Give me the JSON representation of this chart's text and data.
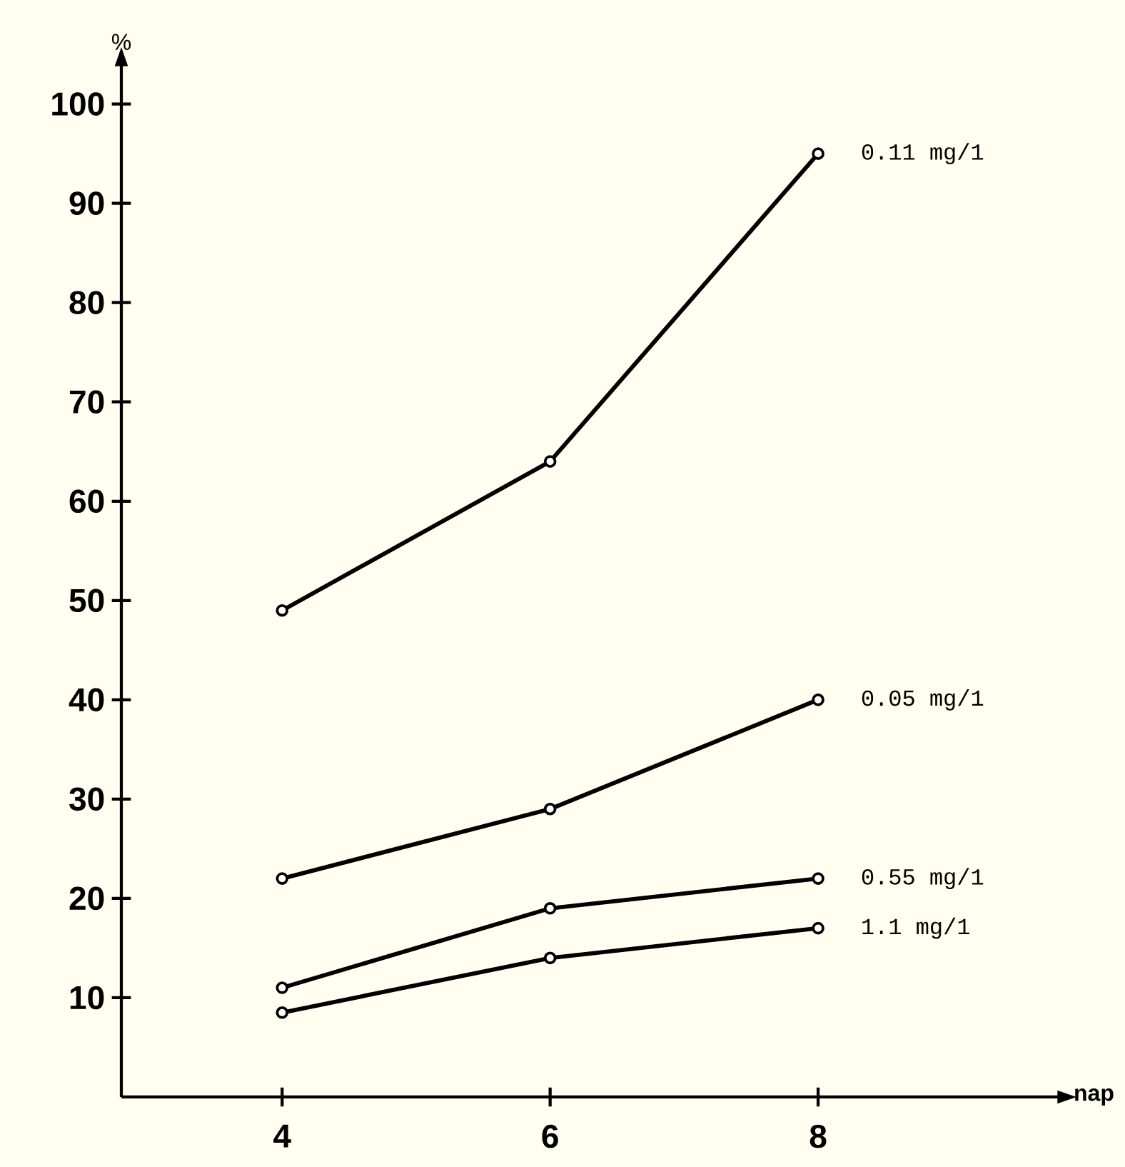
{
  "chart_data": {
    "type": "line",
    "xlabel": "nap",
    "ylabel": "%",
    "x": [
      4,
      6,
      8
    ],
    "xlim": [
      2.8,
      9.8
    ],
    "ylim": [
      0,
      104
    ],
    "xticks": [
      4,
      6,
      8
    ],
    "yticks": [
      10,
      20,
      30,
      40,
      50,
      60,
      70,
      80,
      90,
      100
    ],
    "marker": "circle",
    "line_style": "solid",
    "series": [
      {
        "name": "0.11 mg/1",
        "color": "#000000",
        "values": [
          49,
          64,
          95
        ]
      },
      {
        "name": "0.05 mg/1",
        "color": "#000000",
        "values": [
          22,
          29,
          40
        ]
      },
      {
        "name": "0.55 mg/1",
        "color": "#000000",
        "values": [
          11,
          19,
          22
        ]
      },
      {
        "name": "1.1 mg/1",
        "color": "#000000",
        "values": [
          8.5,
          14,
          17
        ]
      }
    ]
  }
}
